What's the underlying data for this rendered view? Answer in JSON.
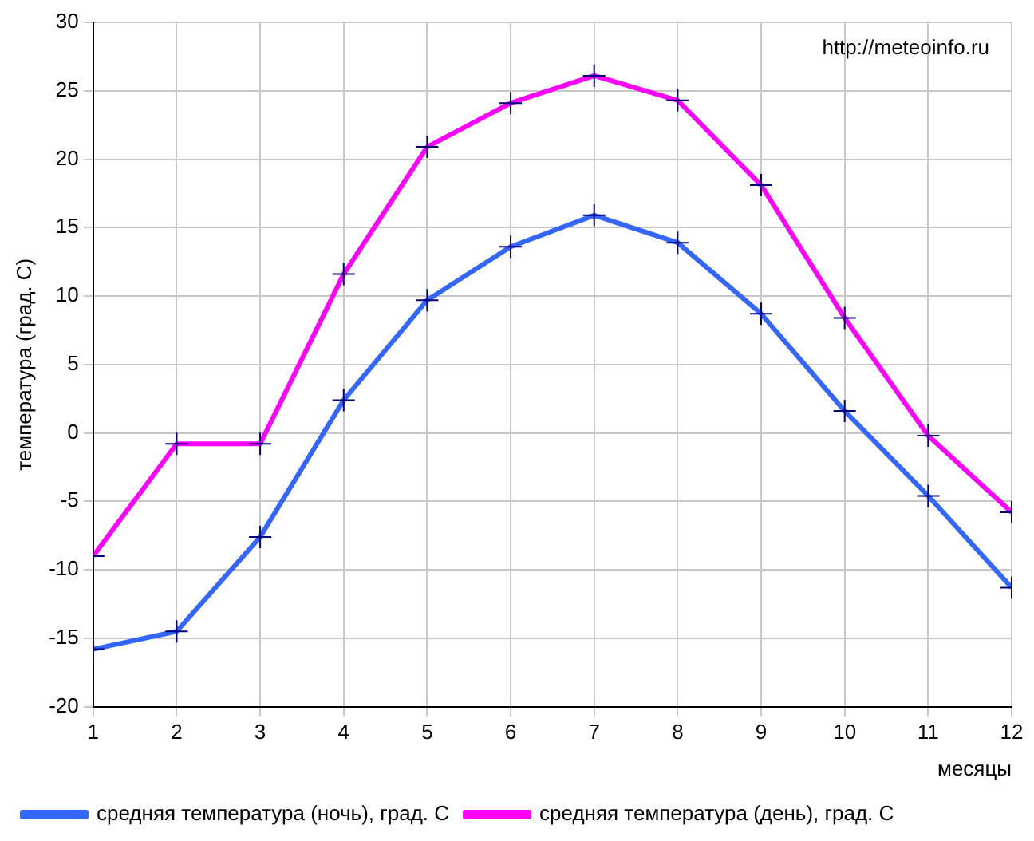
{
  "chart_data": {
    "type": "line",
    "xlabel": "месяцы",
    "ylabel": "температура (град. С)",
    "x": [
      1,
      2,
      3,
      4,
      5,
      6,
      7,
      8,
      9,
      10,
      11,
      12
    ],
    "series": [
      {
        "name": "средняя температура (ночь), град. С",
        "color": "#3366ff",
        "values": [
          -15.8,
          -14.5,
          -7.6,
          2.4,
          9.7,
          13.6,
          15.9,
          13.9,
          8.7,
          1.6,
          -4.6,
          -11.3
        ]
      },
      {
        "name": "средняя температура (день), град. С",
        "color": "#ff00ff",
        "values": [
          -9,
          -0.8,
          -0.8,
          11.6,
          20.9,
          24.1,
          26.1,
          24.3,
          18.1,
          8.4,
          -0.2,
          -5.8
        ]
      }
    ],
    "xlim": [
      1,
      12
    ],
    "xticks": [
      1,
      2,
      3,
      4,
      5,
      6,
      7,
      8,
      9,
      10,
      11,
      12
    ],
    "ylim": [
      -20,
      30
    ],
    "yticks": [
      -20,
      -15,
      -10,
      -5,
      0,
      5,
      10,
      15,
      20,
      25,
      30
    ],
    "grid": true,
    "legend": "bottom left",
    "marker": "cross",
    "line_style": "solid",
    "annotations": [
      "http://meteoinfo.ru"
    ]
  }
}
